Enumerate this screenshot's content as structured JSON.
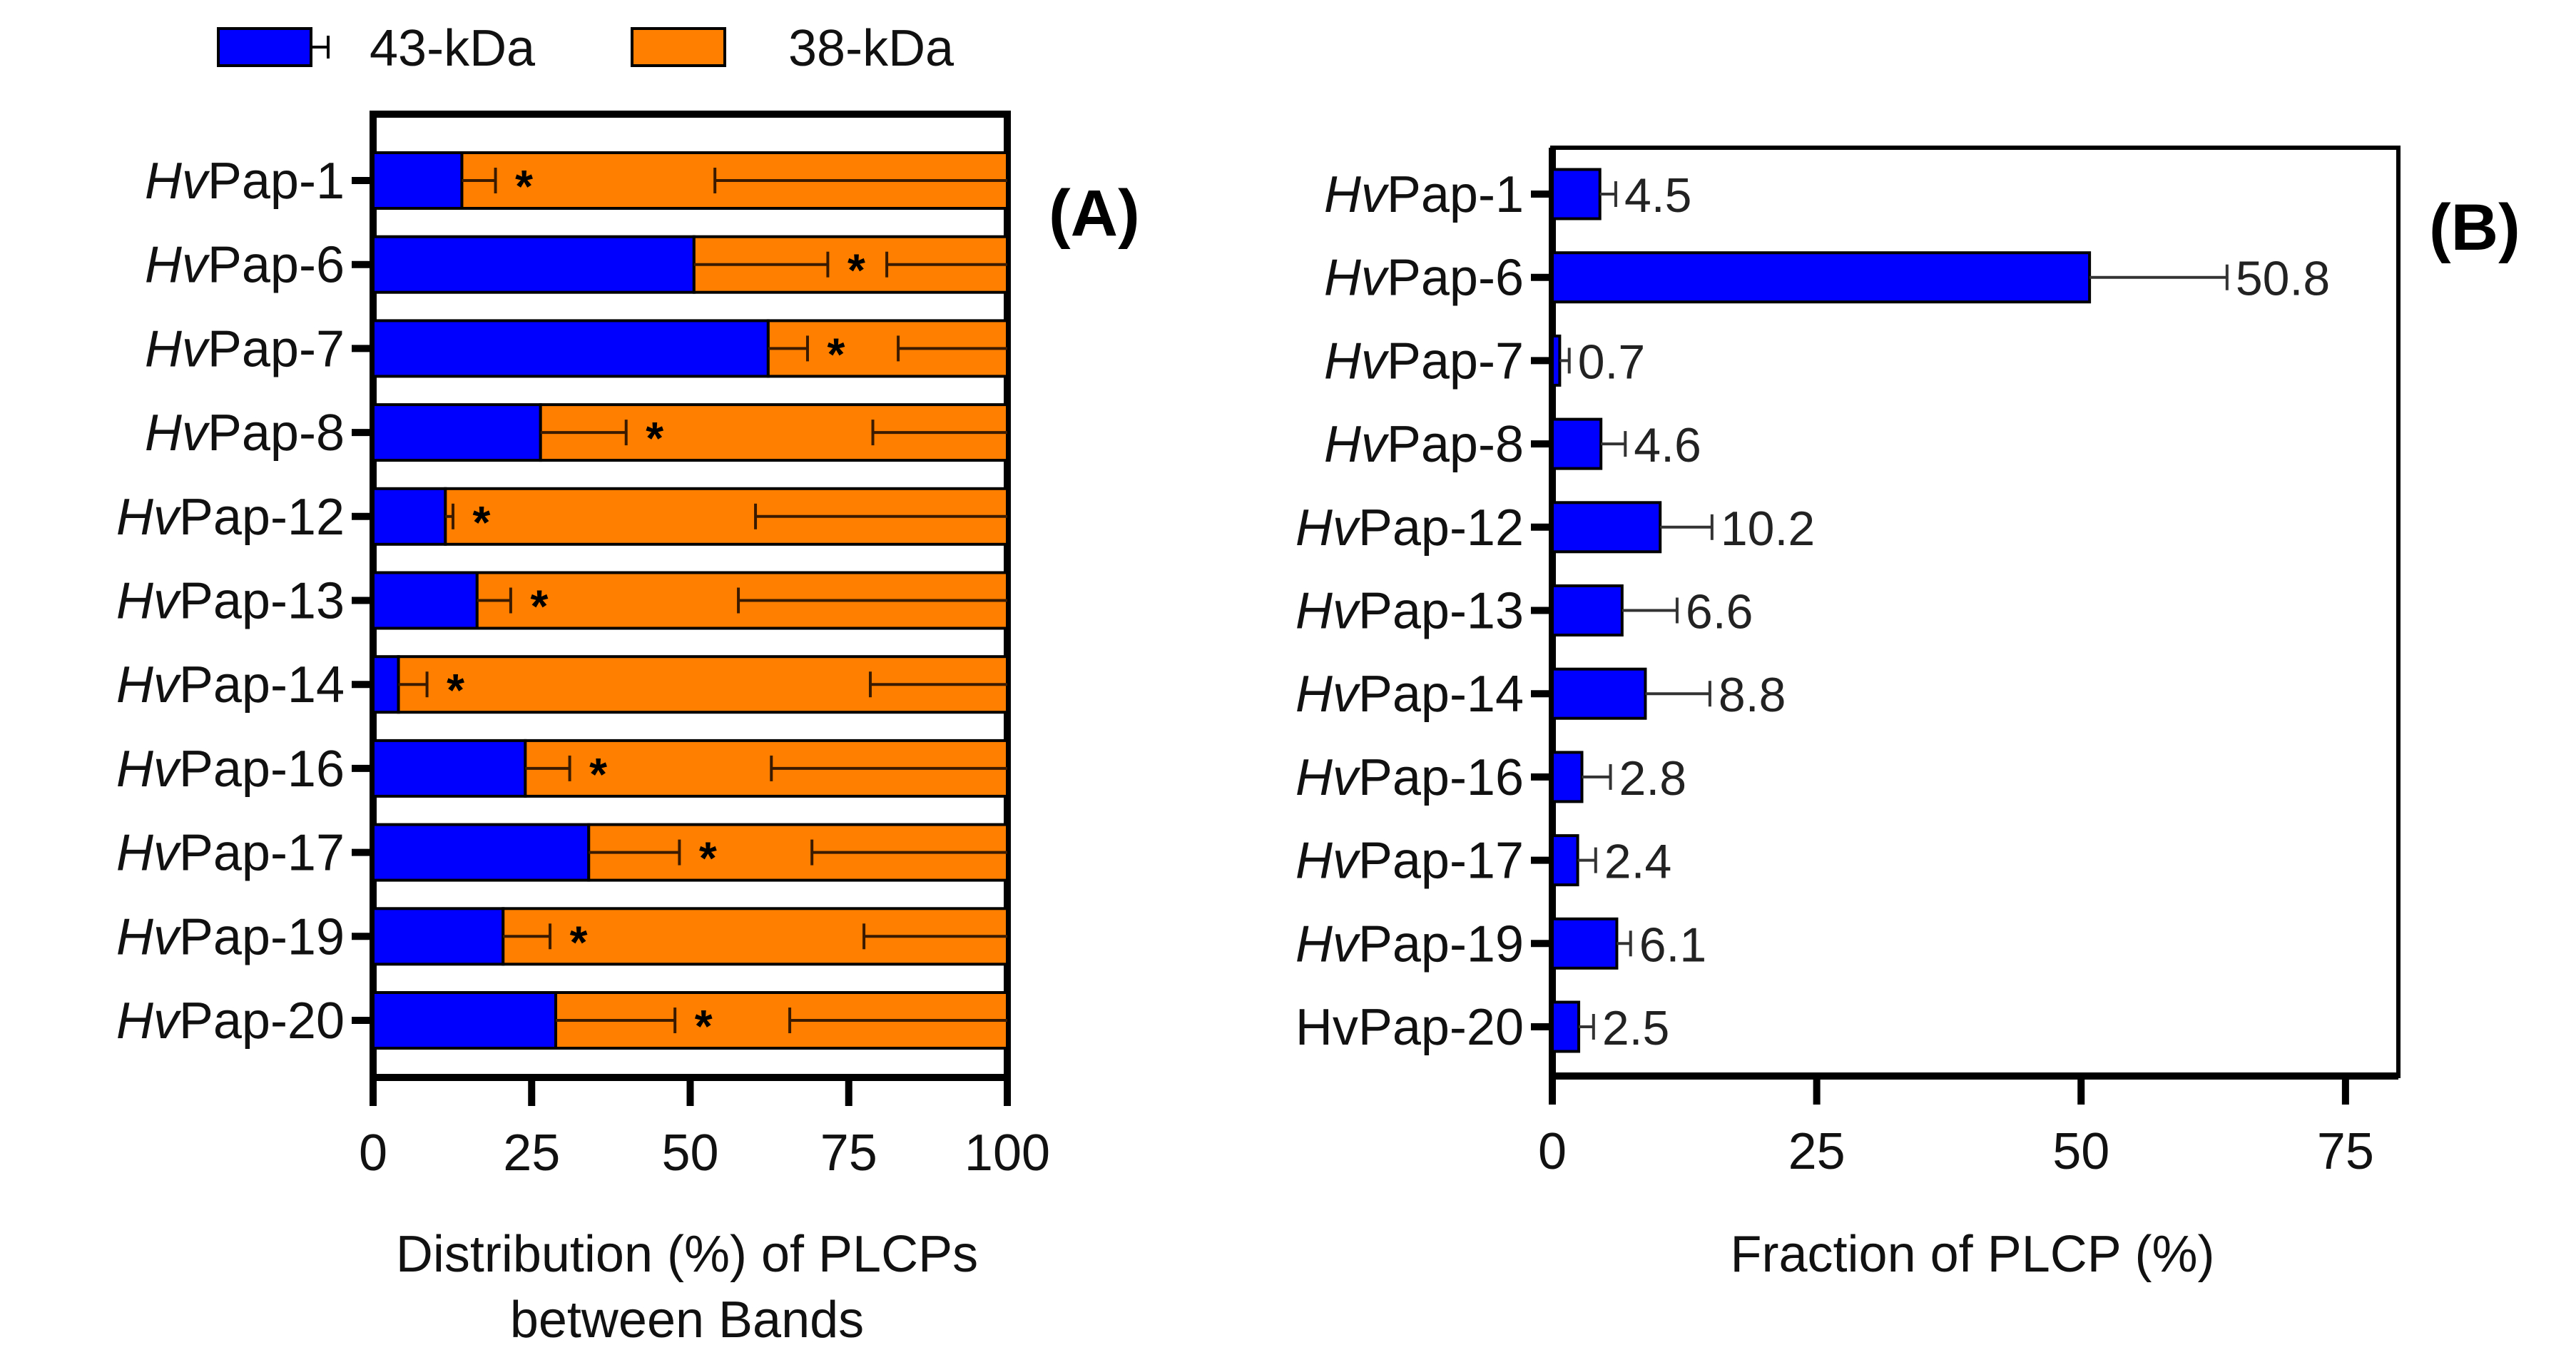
{
  "legend": [
    {
      "label": "43-kDa",
      "color": "#0000FF"
    },
    {
      "label": "38-kDa",
      "color": "#FF8000"
    }
  ],
  "chart_data": [
    {
      "type": "bar",
      "orientation": "horizontal",
      "stacked": true,
      "panel_label": "(A)",
      "xlabel_lines": [
        "Distribution (%) of PLCPs",
        "between Bands"
      ],
      "xlim": [
        0,
        100
      ],
      "xticks": [
        "0",
        "25",
        "50",
        "75",
        "100"
      ],
      "categories": [
        {
          "italic": "Hv",
          "rest": "Pap-1"
        },
        {
          "italic": "Hv",
          "rest": "Pap-6"
        },
        {
          "italic": "Hv",
          "rest": "Pap-7"
        },
        {
          "italic": "Hv",
          "rest": "Pap-8"
        },
        {
          "italic": "Hv",
          "rest": "Pap-12"
        },
        {
          "italic": "Hv",
          "rest": "Pap-13"
        },
        {
          "italic": "Hv",
          "rest": "Pap-14"
        },
        {
          "italic": "Hv",
          "rest": "Pap-16"
        },
        {
          "italic": "Hv",
          "rest": "Pap-17"
        },
        {
          "italic": "Hv",
          "rest": "Pap-19"
        },
        {
          "italic": "Hv",
          "rest": "Pap-20"
        }
      ],
      "series": [
        {
          "name": "43-kDa",
          "values": [
            14.0,
            50.6,
            62.3,
            26.4,
            11.4,
            16.4,
            4.0,
            24.0,
            34.0,
            20.5,
            28.8
          ],
          "errors": [
            5.3,
            21.1,
            6.2,
            13.5,
            1.2,
            5.3,
            4.5,
            7.0,
            14.3,
            7.4,
            18.8
          ]
        },
        {
          "name": "38-kDa",
          "values": [
            86.0,
            49.4,
            37.7,
            73.6,
            88.6,
            83.6,
            96.0,
            76.0,
            66.0,
            79.5,
            71.2
          ],
          "errors": [
            46.1,
            19.0,
            17.2,
            21.2,
            39.7,
            42.4,
            21.6,
            37.2,
            30.8,
            22.6,
            34.3
          ]
        }
      ],
      "annotations": [
        "*",
        "*",
        "*",
        "*",
        "*",
        "*",
        "*",
        "*",
        "*",
        "*",
        "*"
      ]
    },
    {
      "type": "bar",
      "orientation": "horizontal",
      "panel_label": "(B)",
      "xlabel": "Fraction of PLCP (%)",
      "xlim": [
        0,
        80
      ],
      "xticks": [
        "0",
        "25",
        "50",
        "75"
      ],
      "categories": [
        {
          "italic": "Hv",
          "rest": "Pap-1"
        },
        {
          "italic": "Hv",
          "rest": "Pap-6"
        },
        {
          "italic": "Hv",
          "rest": "Pap-7"
        },
        {
          "italic": "Hv",
          "rest": "Pap-8"
        },
        {
          "italic": "Hv",
          "rest": "Pap-12"
        },
        {
          "italic": "Hv",
          "rest": "Pap-13"
        },
        {
          "italic": "Hv",
          "rest": "Pap-14"
        },
        {
          "italic": "Hv",
          "rest": "Pap-16"
        },
        {
          "italic": "Hv",
          "rest": "Pap-17"
        },
        {
          "italic": "Hv",
          "rest": "Pap-19"
        },
        {
          "italic": "",
          "rest": "HvPap-20"
        }
      ],
      "series": [
        {
          "name": "Fraction",
          "values": [
            4.5,
            50.8,
            0.7,
            4.6,
            10.2,
            6.6,
            8.8,
            2.8,
            2.4,
            6.1,
            2.5
          ],
          "errors": [
            1.5,
            13.0,
            0.9,
            2.3,
            4.9,
            5.2,
            6.1,
            2.7,
            1.7,
            1.3,
            1.4
          ],
          "labels": [
            "4.5",
            "50.8",
            "0.7",
            "4.6",
            "10.2",
            "6.6",
            "8.8",
            "2.8",
            "2.4",
            "6.1",
            "2.5"
          ]
        }
      ]
    }
  ]
}
